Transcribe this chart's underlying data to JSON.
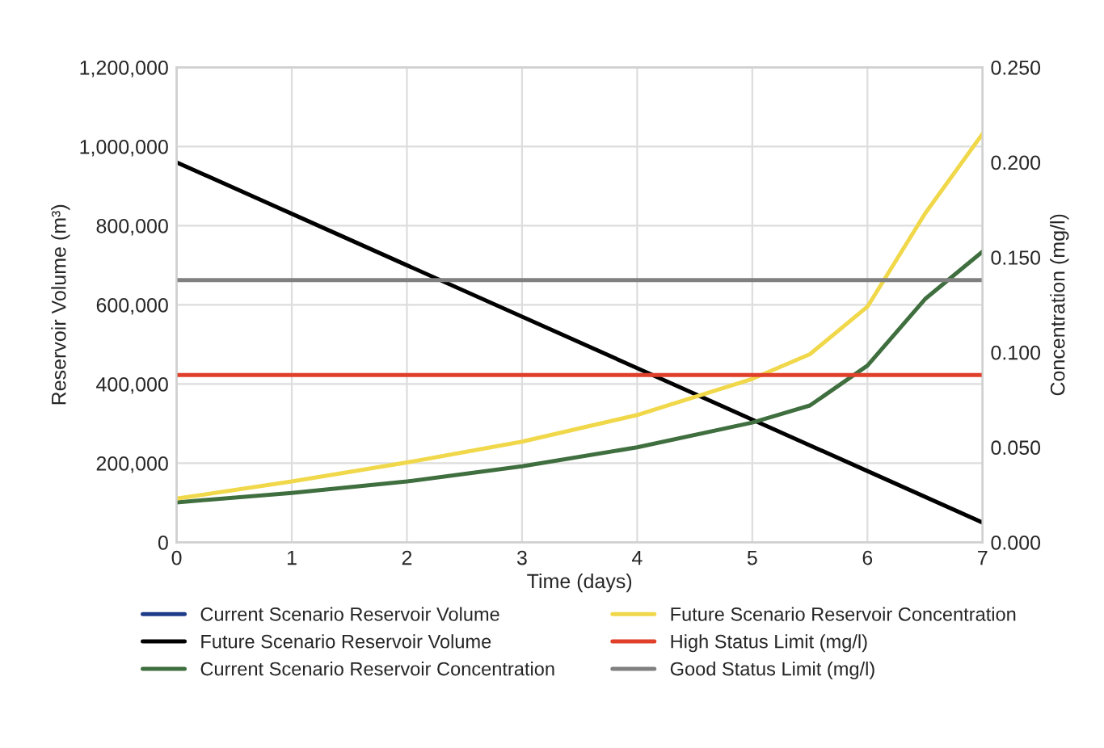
{
  "chart_data": {
    "type": "line",
    "xlabel": "Time (days)",
    "ylabel": "Reservoir Volume (m³)",
    "y2label": "Concentration (mg/l)",
    "x": [
      0,
      1,
      2,
      3,
      4,
      5,
      6,
      7
    ],
    "series": [
      {
        "name": "Current Scenario Reservoir Volume",
        "color": "#1f3c88",
        "values": [
          null,
          null,
          null,
          null,
          null,
          null,
          null,
          null
        ]
      },
      {
        "name": "Future Scenario Reservoir Volume",
        "color": "#000000",
        "values": [
          960000,
          830000,
          700000,
          570000,
          440000,
          310000,
          180000,
          50000
        ]
      },
      {
        "name": "Current Scenario Reservoir Concentration",
        "color": "#3f6e3f",
        "axis": "y2",
        "x": [
          0,
          1,
          2,
          3,
          4,
          5,
          5.5,
          6,
          6.5,
          7
        ],
        "values": [
          0.021,
          0.026,
          0.032,
          0.04,
          0.05,
          0.063,
          0.072,
          0.093,
          0.128,
          0.153
        ]
      },
      {
        "name": "Future Scenario Reservoir Concentration",
        "color": "#f0d84a",
        "axis": "y2",
        "x": [
          0,
          1,
          2,
          3,
          4,
          5,
          5.5,
          6,
          6.5,
          7
        ],
        "values": [
          0.023,
          0.032,
          0.042,
          0.053,
          0.067,
          0.086,
          0.099,
          0.124,
          0.173,
          0.215
        ]
      },
      {
        "name": "High Status Limit (mg/l)",
        "color": "#e0402a",
        "axis": "y2",
        "x": [
          0,
          7
        ],
        "values": [
          0.088,
          0.088
        ]
      },
      {
        "name": "Good Status Limit (mg/l)",
        "color": "#808080",
        "axis": "y2",
        "x": [
          0,
          7
        ],
        "values": [
          0.138,
          0.138
        ]
      }
    ],
    "xlim": [
      0,
      7
    ],
    "xticks": [
      0,
      1,
      2,
      3,
      4,
      5,
      6,
      7
    ],
    "ylim": [
      0,
      1200000
    ],
    "yticks": [
      {
        "value": 0,
        "label": "0"
      },
      {
        "value": 200000,
        "label": "200,000"
      },
      {
        "value": 400000,
        "label": "400,000"
      },
      {
        "value": 600000,
        "label": "600,000"
      },
      {
        "value": 800000,
        "label": "800,000"
      },
      {
        "value": 1000000,
        "label": "1,000,000"
      },
      {
        "value": 1200000,
        "label": "1,200,000"
      }
    ],
    "y2lim": [
      0,
      0.25
    ],
    "y2ticks": [
      {
        "value": 0,
        "label": "0.000"
      },
      {
        "value": 0.05,
        "label": "0.050"
      },
      {
        "value": 0.1,
        "label": "0.100"
      },
      {
        "value": 0.15,
        "label": "0.150"
      },
      {
        "value": 0.2,
        "label": "0.200"
      },
      {
        "value": 0.25,
        "label": "0.250"
      }
    ],
    "grid": true,
    "legend": "bottom",
    "marker": "none",
    "line_style": "solid"
  }
}
